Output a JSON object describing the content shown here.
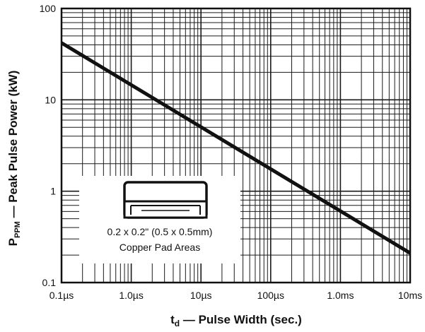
{
  "chart_data": {
    "type": "line",
    "title": "",
    "xscale": "log",
    "yscale": "log",
    "xlim_seconds": [
      1e-07,
      0.01
    ],
    "ylim": [
      0.1,
      100
    ],
    "grid": true,
    "x_ticks": [
      {
        "value": 1e-07,
        "label": "0.1µs"
      },
      {
        "value": 1e-06,
        "label": "1.0µs"
      },
      {
        "value": 1e-05,
        "label": "10µs"
      },
      {
        "value": 0.0001,
        "label": "100µs"
      },
      {
        "value": 0.001,
        "label": "1.0ms"
      },
      {
        "value": 0.01,
        "label": "10ms"
      }
    ],
    "y_ticks": [
      {
        "value": 0.1,
        "label": "0.1"
      },
      {
        "value": 1,
        "label": "1"
      },
      {
        "value": 10,
        "label": "10"
      },
      {
        "value": 100,
        "label": "100"
      }
    ],
    "xlabel": {
      "main": "t",
      "sub": "d",
      "rest": " — Pulse Width (sec.)"
    },
    "ylabel": {
      "main": "P",
      "sub": "PPM",
      "rest": " — Peak Pulse Power (kW)"
    },
    "series": [
      {
        "x": [
          1e-07,
          0.01
        ],
        "y": [
          42,
          0.21
        ]
      }
    ],
    "annotation": {
      "lines": [
        "0.2 x 0.2\" (0.5 x 0.5mm)",
        "Copper Pad Areas"
      ],
      "icon": "smd-package-icon"
    },
    "colors": {
      "line": "#111111",
      "grid": "#1a1a1a",
      "background": "#ffffff"
    }
  }
}
